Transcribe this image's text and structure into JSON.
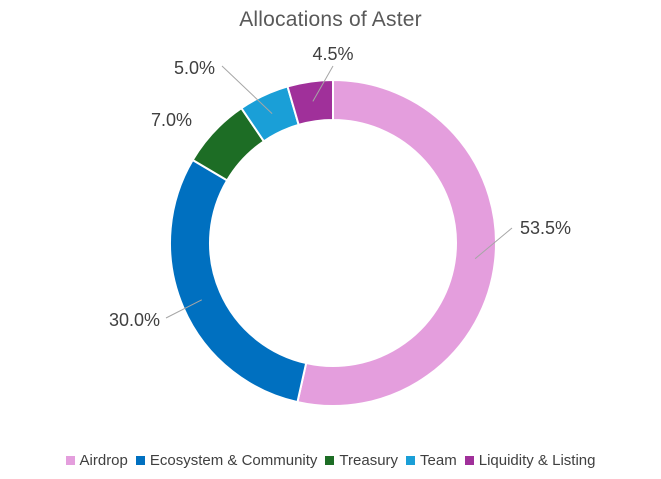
{
  "chart_data": {
    "type": "pie",
    "subtype": "donut",
    "title": "Allocations of Aster",
    "categories": [
      "Airdrop",
      "Ecosystem & Community",
      "Treasury",
      "Team",
      "Liquidity & Listing"
    ],
    "values": [
      53.5,
      30.0,
      7.0,
      5.0,
      4.5
    ],
    "data_labels": [
      "53.5%",
      "30.0%",
      "7.0%",
      "5.0%",
      "4.5%"
    ],
    "colors": [
      "#E49EDD",
      "#0070C0",
      "#1D6D25",
      "#1A9FD7",
      "#A0309A"
    ],
    "legend_position": "bottom",
    "start_angle": "top, clockwise"
  }
}
